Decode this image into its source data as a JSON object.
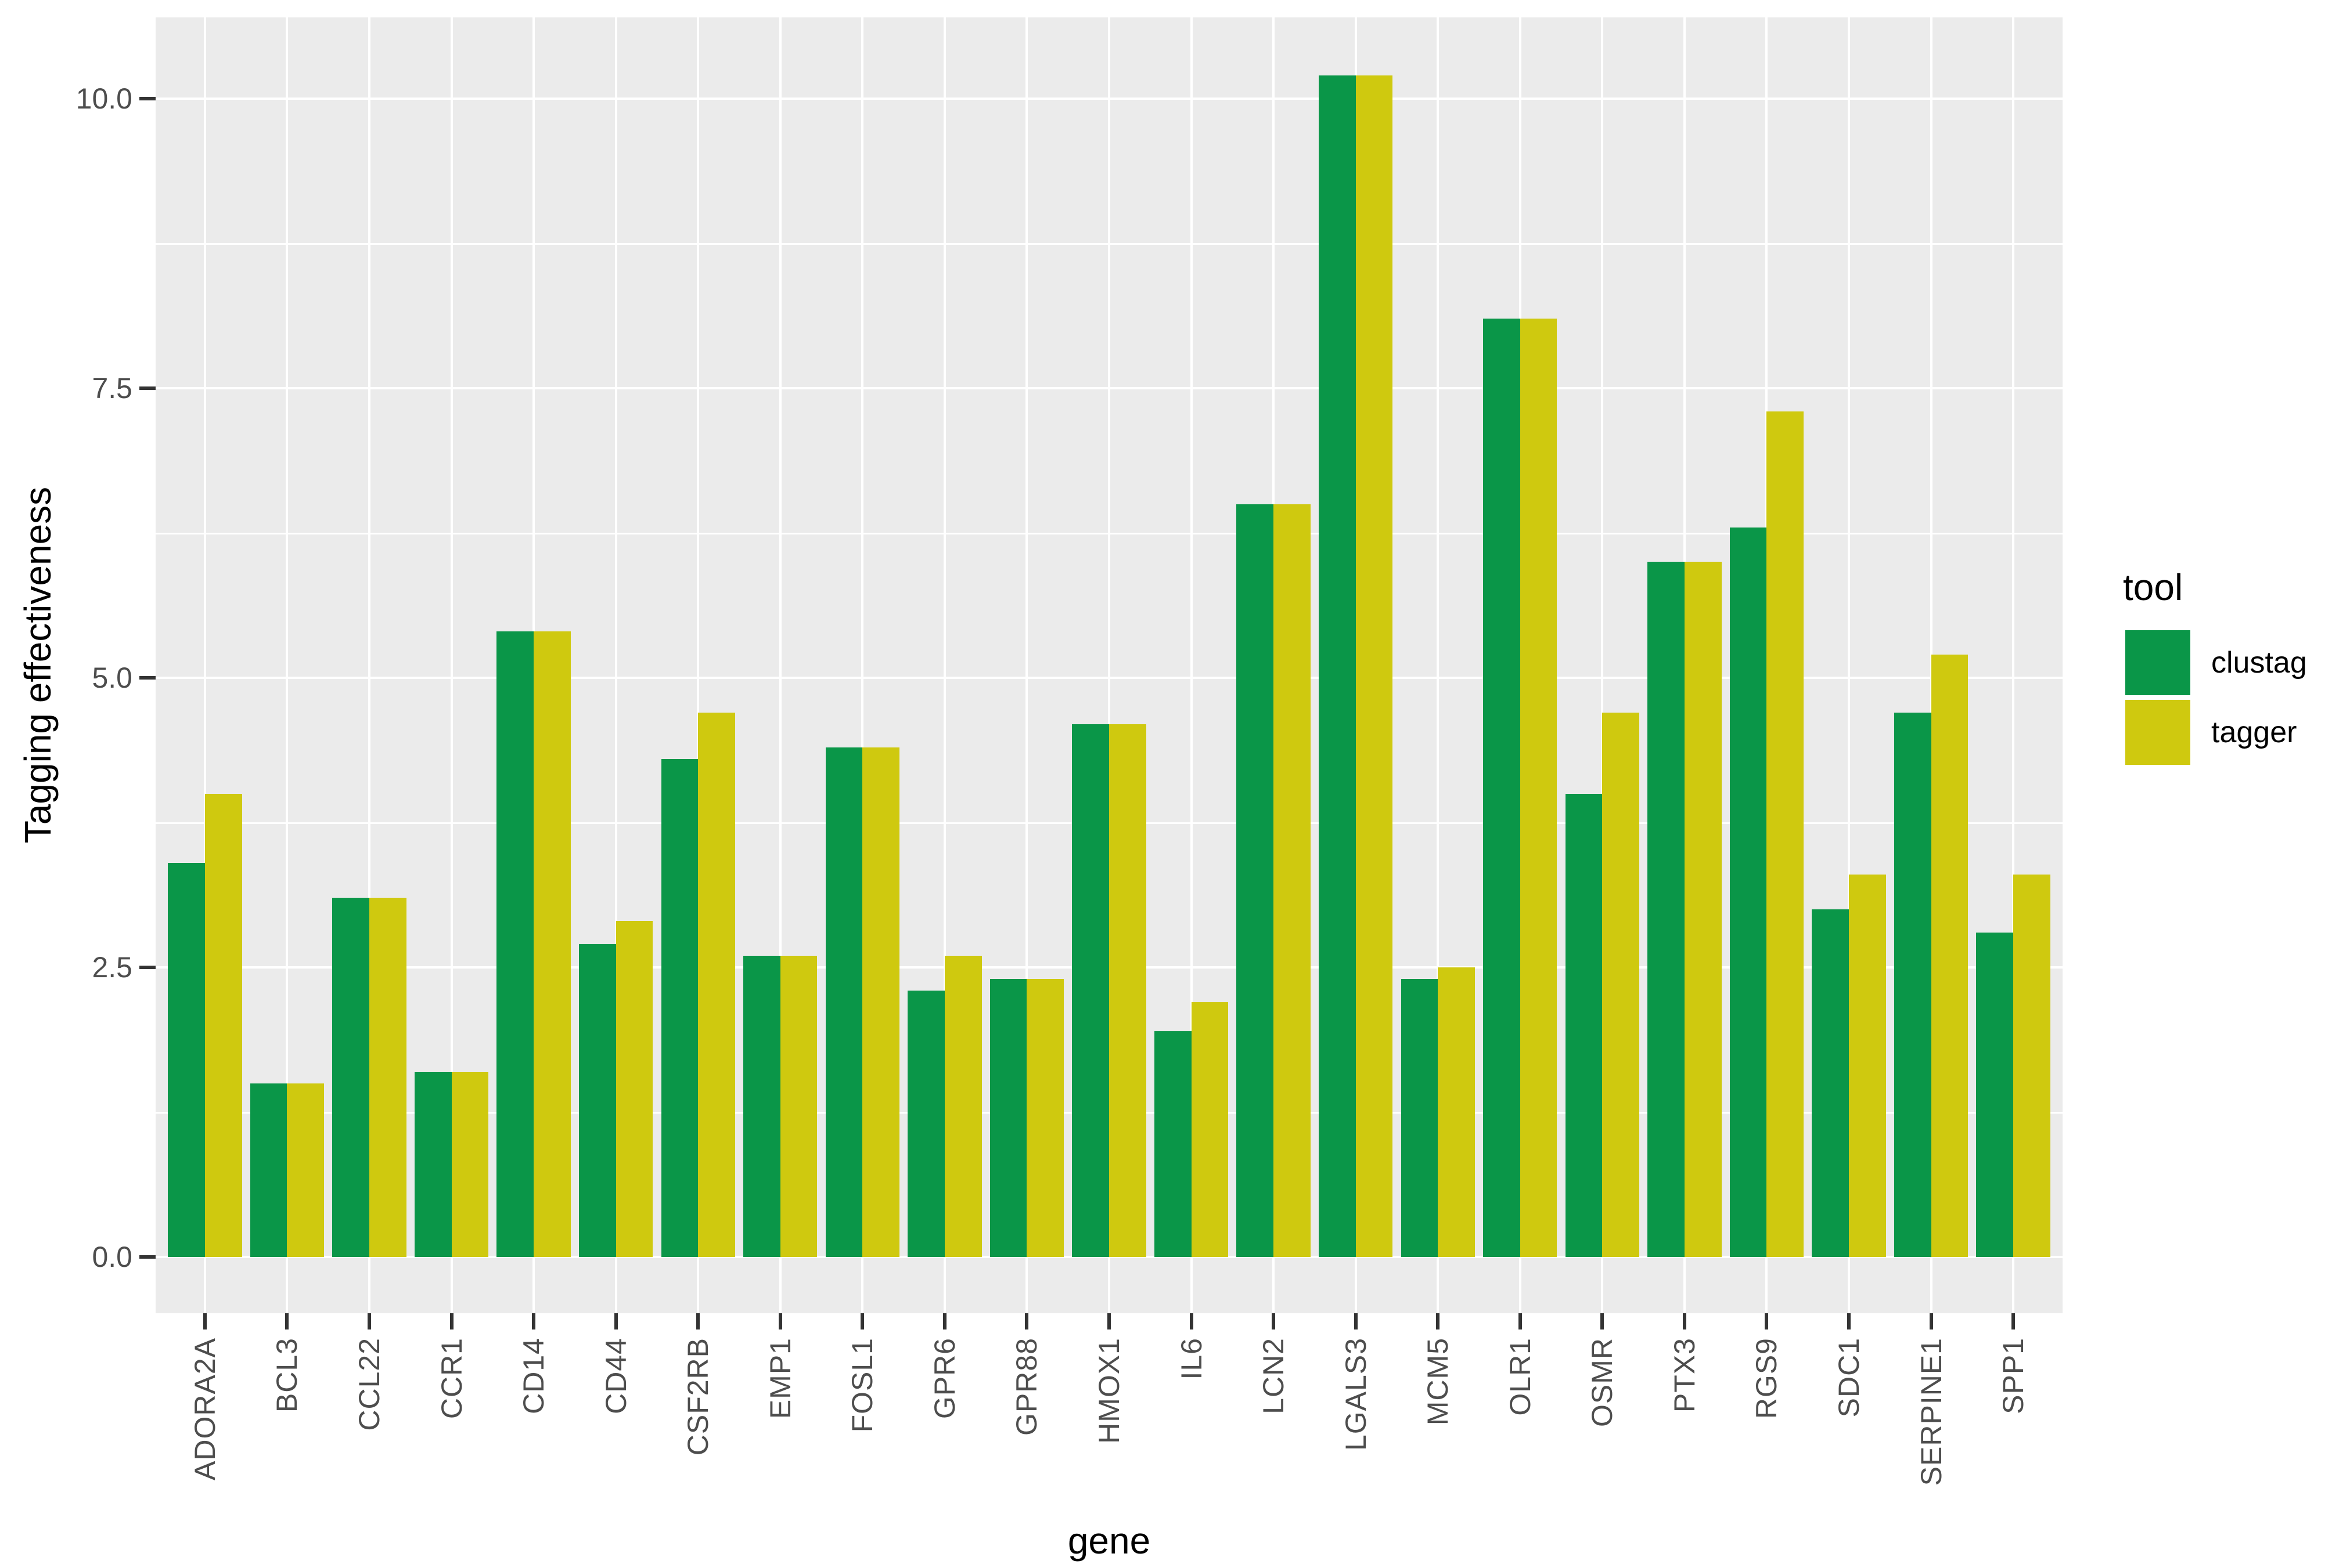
{
  "chart_data": {
    "type": "bar",
    "title": "",
    "xlabel": "gene",
    "ylabel": "Tagging effectiveness",
    "legend_title": "tool",
    "legend_position": "right",
    "grid": "white major and minor gridlines on grey panel",
    "panel_background": "#ebebeb",
    "gridline_color": "#ffffff",
    "tick_text_color": "#4d4d4d",
    "axis_title_color": "#000000",
    "ylim": [
      -0.5,
      10.7
    ],
    "y_ticks": [
      0.0,
      2.5,
      5.0,
      7.5,
      10.0
    ],
    "y_tick_labels": [
      "0.0",
      "2.5",
      "5.0",
      "7.5",
      "10.0"
    ],
    "y_minor_ticks": [
      1.25,
      3.75,
      6.25,
      8.75
    ],
    "categories": [
      "ADORA2A",
      "BCL3",
      "CCL22",
      "CCR1",
      "CD14",
      "CD44",
      "CSF2RB",
      "EMP1",
      "FOSL1",
      "GPR6",
      "GPR88",
      "HMOX1",
      "IL6",
      "LCN2",
      "LGALS3",
      "MCM5",
      "OLR1",
      "OSMR",
      "PTX3",
      "RGS9",
      "SDC1",
      "SERPINE1",
      "SPP1"
    ],
    "series": [
      {
        "name": "clustag",
        "color": "#0a9648",
        "values": [
          3.4,
          1.5,
          3.1,
          1.6,
          5.4,
          2.7,
          4.3,
          2.6,
          4.4,
          2.3,
          2.4,
          4.6,
          1.95,
          6.5,
          10.2,
          2.4,
          8.1,
          4.0,
          6.0,
          6.3,
          3.0,
          4.7,
          2.8
        ]
      },
      {
        "name": "tagger",
        "color": "#cfc90f",
        "values": [
          4.0,
          1.5,
          3.1,
          1.6,
          5.4,
          2.9,
          4.7,
          2.6,
          4.4,
          2.6,
          2.4,
          4.6,
          2.2,
          6.5,
          10.2,
          2.5,
          8.1,
          4.7,
          6.0,
          7.3,
          3.3,
          5.2,
          3.3
        ]
      }
    ]
  }
}
